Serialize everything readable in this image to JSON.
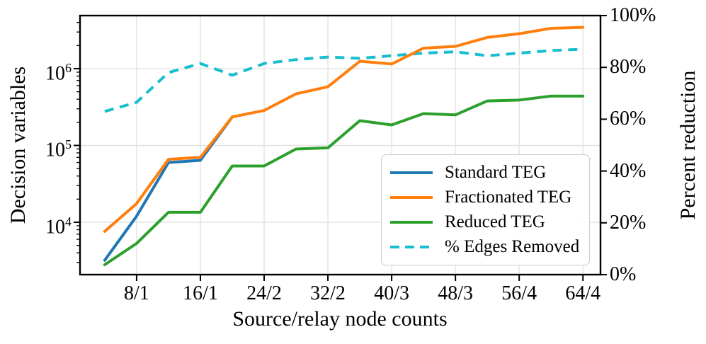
{
  "chart_data": {
    "type": "line",
    "title": "",
    "xlabel": "Source/relay node counts",
    "ylabel_left": "Decision variables",
    "ylabel_right": "Percent reduction",
    "x": [
      4,
      8,
      12,
      16,
      20,
      24,
      28,
      32,
      36,
      40,
      44,
      48,
      52,
      56,
      60,
      64
    ],
    "x_tick_positions": [
      8,
      16,
      24,
      32,
      40,
      48,
      56,
      64
    ],
    "x_tick_labels": [
      "8/1",
      "16/1",
      "24/2",
      "32/2",
      "40/3",
      "48/3",
      "56/4",
      "64/4"
    ],
    "left_axis": {
      "scale": "log",
      "range_approx": [
        2100,
        4900000
      ],
      "ticks": [
        {
          "base": "10",
          "exp": "4",
          "value": 10000
        },
        {
          "base": "10",
          "exp": "5",
          "value": 100000
        },
        {
          "base": "10",
          "exp": "6",
          "value": 1000000
        }
      ]
    },
    "right_axis": {
      "scale": "linear",
      "range": [
        0,
        100
      ],
      "tick_values": [
        0,
        20,
        40,
        60,
        80,
        100
      ],
      "tick_labels": [
        "0%",
        "20%",
        "40%",
        "60%",
        "80%",
        "100%"
      ]
    },
    "grid": {
      "enabled": true,
      "color": "#e3e3e3"
    },
    "legend_position": "lower right",
    "series": [
      {
        "name": "Standard TEG",
        "axis": "left",
        "style": "solid",
        "color": "#1f77b4",
        "x": [
          4,
          8,
          12,
          16,
          20
        ],
        "values": [
          3200,
          12000,
          60000,
          64000,
          235000
        ]
      },
      {
        "name": "Fractionated TEG",
        "axis": "left",
        "style": "solid",
        "color": "#ff7f0e",
        "x": [
          4,
          8,
          12,
          16,
          20,
          24,
          28,
          32,
          36,
          40,
          44,
          48,
          52,
          56,
          60,
          64
        ],
        "values": [
          7600,
          17500,
          66000,
          70000,
          235000,
          285000,
          470000,
          580000,
          1250000,
          1150000,
          1850000,
          1950000,
          2550000,
          2850000,
          3350000,
          3450000
        ]
      },
      {
        "name": "Reduced TEG",
        "axis": "left",
        "style": "solid",
        "color": "#2ca02c",
        "x": [
          4,
          8,
          12,
          16,
          20,
          24,
          28,
          32,
          36,
          40,
          44,
          48,
          52,
          56,
          60,
          64
        ],
        "values": [
          2800,
          5300,
          13500,
          13500,
          54000,
          54000,
          90000,
          93000,
          210000,
          185000,
          260000,
          250000,
          380000,
          390000,
          440000,
          440000
        ]
      },
      {
        "name": "% Edges Removed",
        "axis": "right",
        "style": "dashed",
        "color": "#17becf",
        "x": [
          4,
          8,
          12,
          16,
          20,
          24,
          28,
          32,
          36,
          40,
          44,
          48,
          52,
          56,
          60,
          64
        ],
        "values": [
          63,
          66.5,
          78,
          81.5,
          77,
          81.5,
          83,
          84,
          83.5,
          84.5,
          85.5,
          86,
          84.5,
          85.5,
          86.5,
          87
        ]
      }
    ],
    "spine_color": "#000000"
  }
}
